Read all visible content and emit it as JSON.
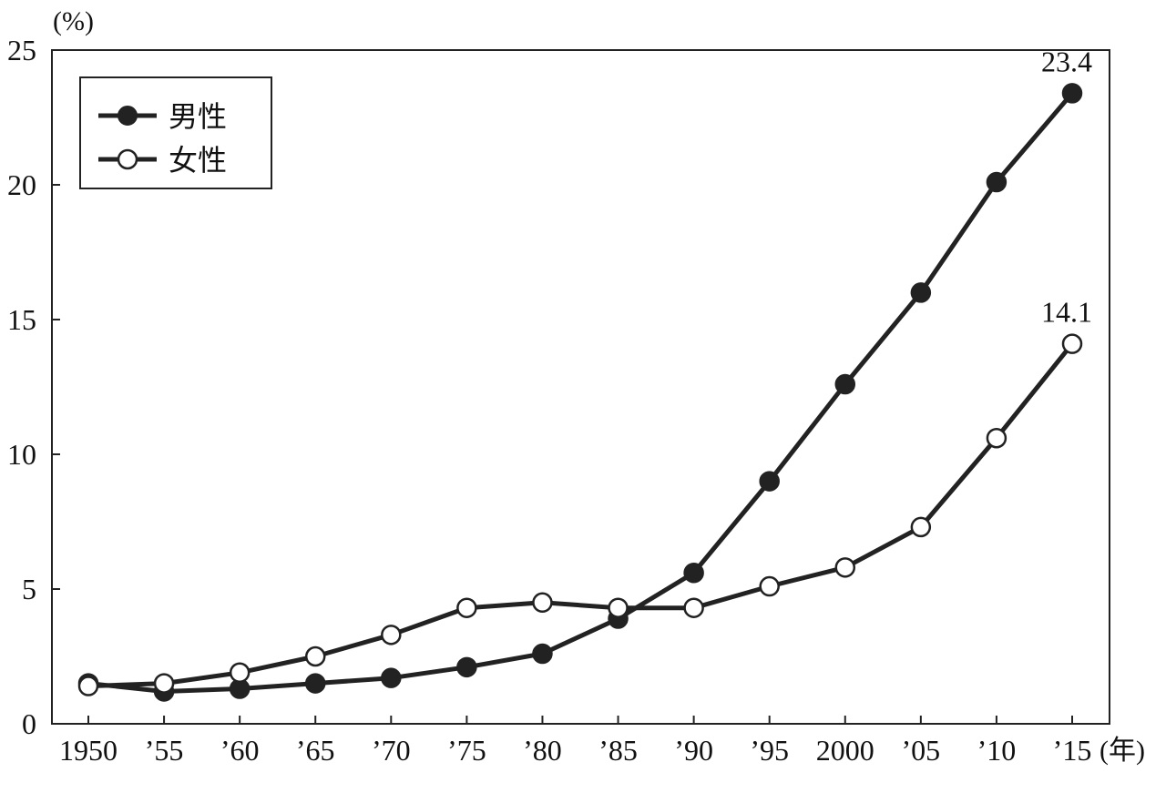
{
  "chart_data": {
    "type": "line",
    "y_unit_label": "(%)",
    "x_unit_label": "(年)",
    "categories": [
      "1950",
      "’55",
      "’60",
      "’65",
      "’70",
      "’75",
      "’80",
      "’85",
      "’90",
      "’95",
      "2000",
      "’05",
      "’10",
      "’15"
    ],
    "x_values": [
      1950,
      1955,
      1960,
      1965,
      1970,
      1975,
      1980,
      1985,
      1990,
      1995,
      2000,
      2005,
      2010,
      2015
    ],
    "ylim": [
      0,
      25
    ],
    "yticks": [
      0,
      5,
      10,
      15,
      20,
      25
    ],
    "grid": false,
    "legend_position": "top-left",
    "series": [
      {
        "name": "男性",
        "marker": "filled-circle",
        "values": [
          1.5,
          1.2,
          1.3,
          1.5,
          1.7,
          2.1,
          2.6,
          3.9,
          5.6,
          9.0,
          12.6,
          16.0,
          20.1,
          23.4
        ]
      },
      {
        "name": "女性",
        "marker": "open-circle",
        "values": [
          1.4,
          1.5,
          1.9,
          2.5,
          3.3,
          4.3,
          4.5,
          4.3,
          4.3,
          5.1,
          5.8,
          7.3,
          10.6,
          14.1
        ]
      }
    ],
    "annotations": [
      {
        "series": 0,
        "index": 13,
        "text": "23.4"
      },
      {
        "series": 1,
        "index": 13,
        "text": "14.1"
      }
    ],
    "colors": {
      "line": "#222222",
      "marker_fill_filled": "#222222",
      "marker_fill_open": "#ffffff"
    }
  }
}
